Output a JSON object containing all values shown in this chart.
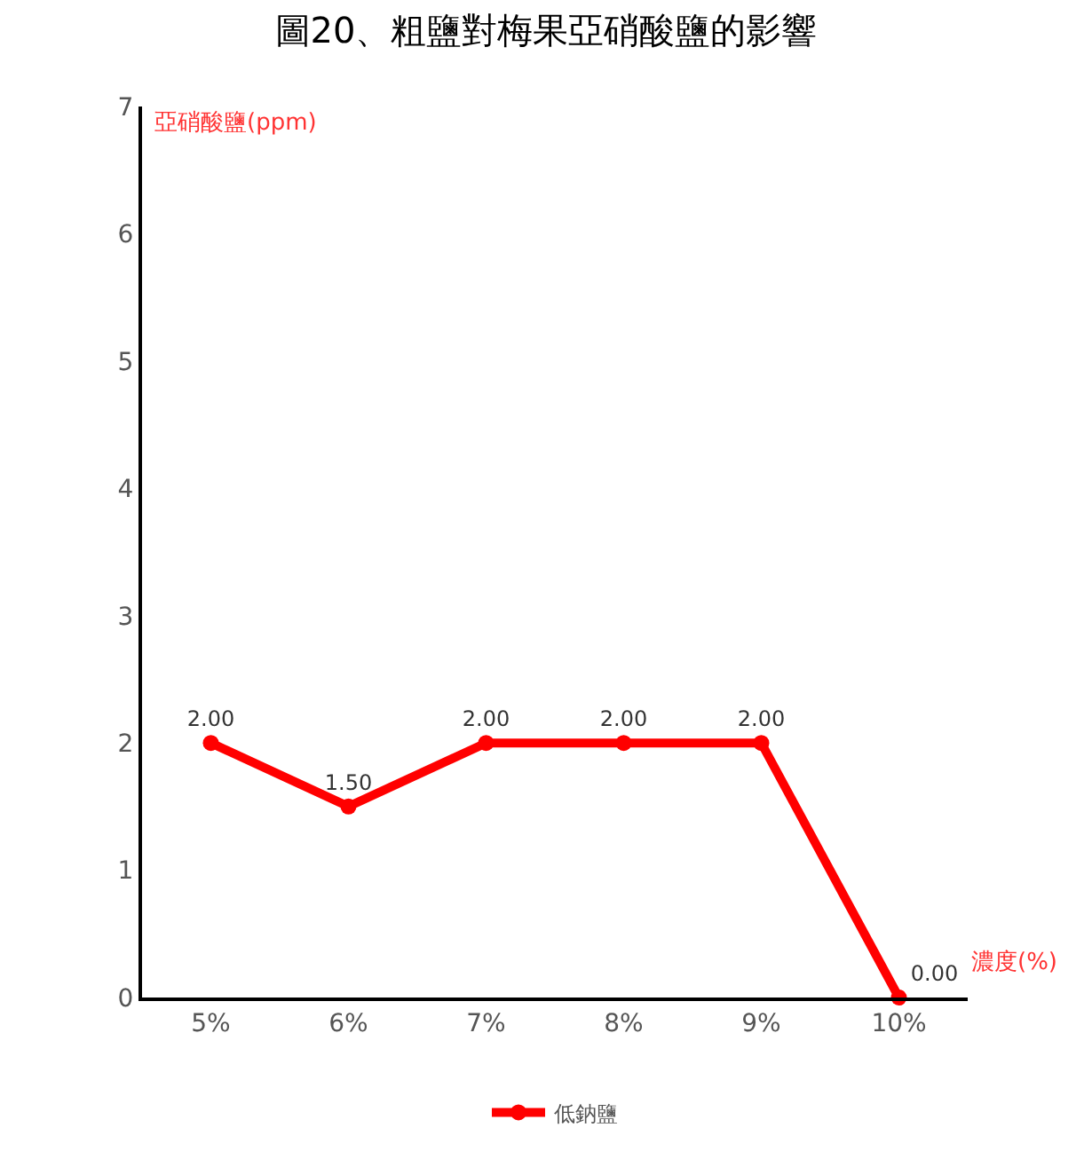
{
  "chart_data": {
    "type": "line",
    "title": "圖20、粗鹽對梅果亞硝酸鹽的影響",
    "ylabel": "亞硝酸鹽(ppm)",
    "xlabel": "濃度(%)",
    "categories": [
      "5%",
      "6%",
      "7%",
      "8%",
      "9%",
      "10%"
    ],
    "series": [
      {
        "name": "低鈉鹽",
        "color": "#ff0000",
        "values": [
          2,
          1.5,
          2,
          2,
          2,
          0
        ],
        "value_labels": [
          "2.00",
          "1.50",
          "2.00",
          "2.00",
          "2.00",
          "0.00"
        ]
      }
    ],
    "ylim": [
      0,
      7
    ],
    "yticks": [
      0,
      1,
      2,
      3,
      4,
      5,
      6,
      7
    ],
    "legend": "bottom",
    "marker": "circle",
    "line_style": "solid"
  }
}
